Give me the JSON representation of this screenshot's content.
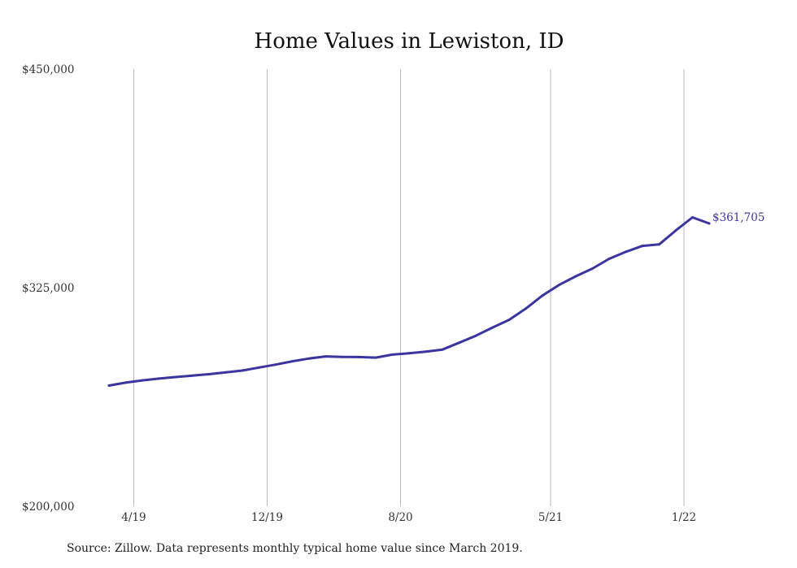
{
  "chart_data": {
    "type": "line",
    "title": "Home Values in Lewiston, ID",
    "xlabel": "",
    "ylabel": "",
    "ylim": [
      200000,
      450000
    ],
    "yticks": [
      {
        "value": 200000,
        "label": "$200,000"
      },
      {
        "value": 325000,
        "label": "$325,000"
      },
      {
        "value": 450000,
        "label": "$450,000"
      }
    ],
    "xticks": [
      {
        "date": "2019-04",
        "label": "4/19"
      },
      {
        "date": "2019-12",
        "label": "12/19"
      },
      {
        "date": "2020-08",
        "label": "8/20"
      },
      {
        "date": "2021-05",
        "label": "5/21"
      },
      {
        "date": "2022-01",
        "label": "1/22"
      }
    ],
    "grid": {
      "vertical": true,
      "horizontal": false
    },
    "legend": "none",
    "series": [
      {
        "color": "#3b35a0",
        "x": [
          "2019-03",
          "2019-04",
          "2019-05",
          "2019-06",
          "2019-07",
          "2019-08",
          "2019-09",
          "2019-10",
          "2019-11",
          "2019-12",
          "2020-01",
          "2020-02",
          "2020-03",
          "2020-04",
          "2020-05",
          "2020-06",
          "2020-07",
          "2020-08",
          "2020-09",
          "2020-10",
          "2020-11",
          "2020-12",
          "2021-01",
          "2021-02",
          "2021-03",
          "2021-04",
          "2021-05",
          "2021-06",
          "2021-07",
          "2021-08",
          "2021-09",
          "2021-10",
          "2021-11",
          "2021-12",
          "2022-01",
          "2022-02",
          "2022-03"
        ],
        "values": [
          269000,
          270700,
          272000,
          273000,
          273900,
          274700,
          275500,
          276600,
          277600,
          279300,
          281000,
          282900,
          284500,
          285700,
          285400,
          285300,
          285000,
          286700,
          287500,
          288400,
          289600,
          293500,
          297500,
          302200,
          306600,
          313000,
          320500,
          326600,
          331500,
          335900,
          341500,
          345500,
          348900,
          349700,
          357700,
          365200,
          361705
        ]
      }
    ],
    "end_label": "$361,705",
    "source": "Source: Zillow. Data represents monthly typical home value since March 2019."
  }
}
